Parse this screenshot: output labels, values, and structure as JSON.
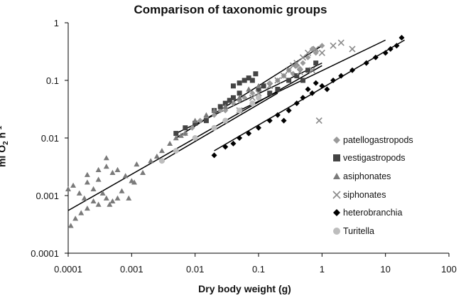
{
  "chart_data": {
    "type": "scatter",
    "title": "Comparison of taxonomic groups",
    "xlabel": "Dry body weight (g)",
    "ylabel_parts": {
      "base": "ml O",
      "sub": "2",
      "mid": " h",
      "sup": "-1"
    },
    "xscale": "log",
    "yscale": "log",
    "xlim": [
      0.0001,
      100
    ],
    "ylim": [
      0.0001,
      1
    ],
    "x_ticks": [
      "0.0001",
      "0.001",
      "0.01",
      "0.1",
      "1",
      "10",
      "100"
    ],
    "y_ticks": [
      "0.0001",
      "0.001",
      "0.01",
      "0.1",
      "1"
    ],
    "grid": false,
    "legend_position": "right",
    "series": [
      {
        "name": "patellogastropods",
        "marker": "diamond",
        "color": "#9a9a9a",
        "points": [
          [
            0.007,
            0.012
          ],
          [
            0.009,
            0.015
          ],
          [
            0.012,
            0.02
          ],
          [
            0.015,
            0.022
          ],
          [
            0.02,
            0.025
          ],
          [
            0.025,
            0.03
          ],
          [
            0.03,
            0.03
          ],
          [
            0.04,
            0.04
          ],
          [
            0.05,
            0.045
          ],
          [
            0.06,
            0.05
          ],
          [
            0.08,
            0.06
          ],
          [
            0.1,
            0.07
          ],
          [
            0.12,
            0.08
          ],
          [
            0.15,
            0.09
          ],
          [
            0.2,
            0.1
          ],
          [
            0.25,
            0.12
          ],
          [
            0.3,
            0.15
          ],
          [
            0.4,
            0.18
          ],
          [
            0.5,
            0.2
          ],
          [
            0.6,
            0.25
          ],
          [
            0.8,
            0.3
          ],
          [
            1.0,
            0.4
          ],
          [
            0.7,
            0.35
          ],
          [
            0.35,
            0.13
          ],
          [
            0.45,
            0.16
          ]
        ],
        "fit": [
          [
            0.005,
            0.01
          ],
          [
            1.0,
            0.4
          ]
        ]
      },
      {
        "name": "vestigastropods",
        "marker": "square",
        "color": "#444444",
        "points": [
          [
            0.005,
            0.012
          ],
          [
            0.007,
            0.015
          ],
          [
            0.01,
            0.018
          ],
          [
            0.015,
            0.02
          ],
          [
            0.02,
            0.03
          ],
          [
            0.03,
            0.04
          ],
          [
            0.04,
            0.05
          ],
          [
            0.05,
            0.06
          ],
          [
            0.06,
            0.1
          ],
          [
            0.07,
            0.11
          ],
          [
            0.08,
            0.1
          ],
          [
            0.1,
            0.07
          ],
          [
            0.12,
            0.08
          ],
          [
            0.15,
            0.06
          ],
          [
            0.2,
            0.07
          ],
          [
            0.3,
            0.1
          ],
          [
            0.4,
            0.12
          ],
          [
            0.5,
            0.1
          ],
          [
            0.6,
            0.15
          ],
          [
            0.8,
            0.2
          ],
          [
            0.09,
            0.13
          ],
          [
            0.05,
            0.09
          ],
          [
            0.04,
            0.08
          ],
          [
            0.025,
            0.035
          ],
          [
            0.035,
            0.045
          ]
        ],
        "fit": [
          [
            0.005,
            0.012
          ],
          [
            1.0,
            0.2
          ]
        ]
      },
      {
        "name": "asiphonates",
        "marker": "triangle",
        "color": "#7a7a7a",
        "points": [
          [
            0.0001,
            0.0013
          ],
          [
            0.00012,
            0.0015
          ],
          [
            0.00015,
            0.0011
          ],
          [
            0.0002,
            0.0017
          ],
          [
            0.00025,
            0.0013
          ],
          [
            0.0003,
            0.0019
          ],
          [
            0.0003,
            0.0007
          ],
          [
            0.0004,
            0.0009
          ],
          [
            0.0005,
            0.0025
          ],
          [
            0.0005,
            0.0008
          ],
          [
            0.0006,
            0.0028
          ],
          [
            0.0007,
            0.0012
          ],
          [
            0.0008,
            0.0022
          ],
          [
            0.001,
            0.0018
          ],
          [
            0.0012,
            0.0035
          ],
          [
            0.0015,
            0.0025
          ],
          [
            0.002,
            0.004
          ],
          [
            0.003,
            0.006
          ],
          [
            0.004,
            0.008
          ],
          [
            0.005,
            0.01
          ],
          [
            0.007,
            0.012
          ],
          [
            0.01,
            0.02
          ],
          [
            0.02,
            0.03
          ],
          [
            0.05,
            0.05
          ],
          [
            0.1,
            0.08
          ],
          [
            0.00011,
            0.0003
          ],
          [
            0.00013,
            0.0004
          ],
          [
            0.00016,
            0.0005
          ],
          [
            0.0002,
            0.0006
          ],
          [
            0.00018,
            0.0009
          ],
          [
            0.00025,
            0.0008
          ],
          [
            0.00035,
            0.0011
          ],
          [
            0.00045,
            0.0007
          ],
          [
            0.0002,
            0.0023
          ],
          [
            0.0003,
            0.0028
          ],
          [
            0.0004,
            0.0032
          ],
          [
            0.0004,
            0.0045
          ],
          [
            0.0006,
            0.0009
          ],
          [
            0.0009,
            0.0009
          ],
          [
            0.0011,
            0.0017
          ],
          [
            0.0025,
            0.0048
          ],
          [
            0.006,
            0.011
          ],
          [
            0.015,
            0.025
          ],
          [
            0.03,
            0.035
          ],
          [
            0.07,
            0.07
          ]
        ],
        "fit": [
          [
            0.0001,
            0.00055
          ],
          [
            1.0,
            0.18
          ]
        ]
      },
      {
        "name": "siphonates",
        "marker": "x",
        "color": "#8a8a8a",
        "points": [
          [
            0.05,
            0.03
          ],
          [
            0.08,
            0.05
          ],
          [
            0.1,
            0.06
          ],
          [
            0.15,
            0.08
          ],
          [
            0.2,
            0.1
          ],
          [
            0.3,
            0.15
          ],
          [
            0.4,
            0.2
          ],
          [
            0.5,
            0.25
          ],
          [
            0.6,
            0.3
          ],
          [
            0.8,
            0.35
          ],
          [
            1.0,
            0.3
          ],
          [
            1.5,
            0.4
          ],
          [
            2.0,
            0.45
          ],
          [
            3.0,
            0.35
          ],
          [
            0.7,
            0.15
          ],
          [
            0.9,
            0.02
          ],
          [
            0.25,
            0.12
          ],
          [
            0.35,
            0.18
          ],
          [
            0.45,
            0.14
          ]
        ],
        "fit": [
          [
            0.05,
            0.03
          ],
          [
            10.0,
            0.5
          ]
        ]
      },
      {
        "name": "heterobranchia",
        "marker": "diamond",
        "color": "#000000",
        "points": [
          [
            0.02,
            0.005
          ],
          [
            0.03,
            0.007
          ],
          [
            0.04,
            0.008
          ],
          [
            0.05,
            0.01
          ],
          [
            0.07,
            0.012
          ],
          [
            0.1,
            0.015
          ],
          [
            0.15,
            0.02
          ],
          [
            0.2,
            0.025
          ],
          [
            0.3,
            0.03
          ],
          [
            0.5,
            0.05
          ],
          [
            0.7,
            0.06
          ],
          [
            1.0,
            0.08
          ],
          [
            1.5,
            0.1
          ],
          [
            2.0,
            0.12
          ],
          [
            3.0,
            0.15
          ],
          [
            5.0,
            0.2
          ],
          [
            7.0,
            0.25
          ],
          [
            10.0,
            0.3
          ],
          [
            15.0,
            0.4
          ],
          [
            18.0,
            0.55
          ],
          [
            12.0,
            0.35
          ],
          [
            0.25,
            0.02
          ],
          [
            0.4,
            0.04
          ],
          [
            0.6,
            0.07
          ],
          [
            0.8,
            0.09
          ],
          [
            1.2,
            0.07
          ]
        ],
        "fit": [
          [
            0.02,
            0.006
          ],
          [
            20.0,
            0.5
          ]
        ]
      },
      {
        "name": "Turitella",
        "marker": "circle",
        "color": "#bdbdbd",
        "points": [
          [
            0.003,
            0.004
          ],
          [
            0.005,
            0.006
          ],
          [
            0.01,
            0.01
          ],
          [
            0.02,
            0.015
          ],
          [
            0.03,
            0.02
          ],
          [
            0.05,
            0.03
          ],
          [
            0.08,
            0.04
          ],
          [
            0.1,
            0.05
          ]
        ],
        "fit": [
          [
            0.003,
            0.004
          ],
          [
            0.2,
            0.06
          ]
        ]
      }
    ]
  }
}
